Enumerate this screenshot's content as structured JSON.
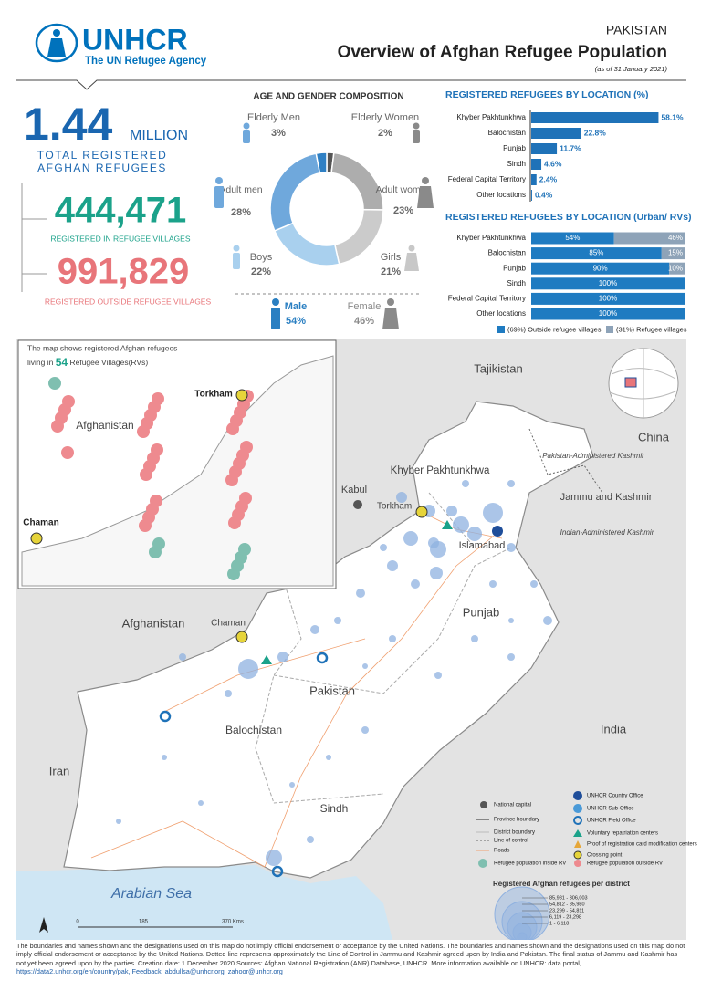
{
  "header": {
    "org": "UNHCR",
    "org_tagline": "The UN Refugee Agency",
    "country": "PAKISTAN",
    "title": "Overview of Afghan Refugee Population",
    "date": "(as of 31 January 2021)"
  },
  "summary": {
    "total": "1.44",
    "total_unit": "MILLION",
    "total_label_1": "TOTAL REGISTERED",
    "total_label_2": "AFGHAN REFUGEES",
    "in_villages": "444,471",
    "in_villages_label": "REGISTERED IN REFUGEE VILLAGES",
    "outside_villages": "991,829",
    "outside_villages_label": "REGISTERED OUTSIDE REFUGEE VILLAGES"
  },
  "composition": {
    "type": "donut",
    "title": "AGE AND GENDER COMPOSITION",
    "segments": [
      {
        "name": "Elderly Women",
        "value": 2,
        "label": "2%",
        "color": "#555555"
      },
      {
        "name": "Adult women",
        "value": 23,
        "label": "23%",
        "color": "#adadad"
      },
      {
        "name": "Girls",
        "value": 21,
        "label": "21%",
        "color": "#cbcbcb"
      },
      {
        "name": "Boys",
        "value": 22,
        "label": "22%",
        "color": "#a9d0ee"
      },
      {
        "name": "Adult men",
        "value": 28,
        "label": "28%",
        "color": "#6fa8dc"
      },
      {
        "name": "Elderly Men",
        "value": 3,
        "label": "3%",
        "color": "#2f80c4"
      }
    ],
    "gender": [
      {
        "name": "Male",
        "label": "54%"
      },
      {
        "name": "Female",
        "label": "46%"
      }
    ]
  },
  "by_location": {
    "type": "bar",
    "title": "REGISTERED REFUGEES BY LOCATION (%)",
    "categories": [
      "Khyber Pakhtunkhwa",
      "Balochistan",
      "Punjab",
      "Sindh",
      "Federal Capital Territory",
      "Other locations"
    ],
    "values": [
      58.1,
      22.8,
      11.7,
      4.6,
      2.4,
      0.4
    ],
    "value_labels": [
      "58.1%",
      "22.8%",
      "11.7%",
      "4.6%",
      "2.4%",
      "0.4%"
    ],
    "color": "#1f72b8"
  },
  "by_settlement": {
    "type": "stacked-bar",
    "title": "REGISTERED REFUGEES BY LOCATION (Urban/ RVs)",
    "categories": [
      "Khyber Pakhtunkhwa",
      "Balochistan",
      "Punjab",
      "Sindh",
      "Federal Capital Territory",
      "Other locations"
    ],
    "series": [
      {
        "name": "(69%) Outside refugee villages",
        "color": "#1f7bc1",
        "values": [
          54,
          85,
          90,
          100,
          100,
          100
        ],
        "value_labels": [
          "54%",
          "85%",
          "90%",
          "100%",
          "100%",
          "100%"
        ]
      },
      {
        "name": "(31%) Refugee villages",
        "color": "#8ea3b8",
        "values": [
          46,
          15,
          10,
          0,
          0,
          0
        ],
        "value_labels": [
          "46%",
          "15%",
          "10%",
          null,
          null,
          null
        ]
      }
    ]
  },
  "map": {
    "tajikistan": "Tajikistan",
    "china": "China",
    "pak_kashmir": "Pakistan-Administered Kashmir",
    "jammu": "Jammu and Kashmir",
    "ind_kashmir": "Indian-Administered Kashmir",
    "kp": "Khyber Pakhtunkhwa",
    "kabul": "Kabul",
    "torkham": "Torkham",
    "islamabad": "Islamabad",
    "punjab": "Punjab",
    "afghanistan": "Afghanistan",
    "chaman": "Chaman",
    "pakistan": "Pakistan",
    "balochistan": "Balochistan",
    "india": "India",
    "iran": "Iran",
    "sindh": "Sindh",
    "sea": "Arabian Sea"
  },
  "inset": {
    "note_1": "The map shows registered Afghan refugees",
    "note_2a": "living in",
    "note_count": "54",
    "note_2b": "Refugee Villages(RVs)",
    "afghanistan": "Afghanistan",
    "torkham": "Torkham",
    "chaman": "Chaman"
  },
  "map_legend": {
    "left": [
      "National capital",
      "Province boundary",
      "District boundary",
      "Line of control",
      "Roads",
      "Refugee population inside RV"
    ],
    "right": [
      "UNHCR Country Office",
      "UNHCR Sub-Office",
      "UNHCR Field Office",
      "Voluntary repatriation centers",
      "Proof of registration card modification centers",
      "Crossing point",
      "Refugee population outside RV"
    ],
    "size_title": "Registered Afghan refugees per district",
    "size_classes": [
      "85,981 - 306,003",
      "54,812 - 85,980",
      "23,299 - 54,811",
      "6,119 - 23,298",
      "1 - 6,118"
    ]
  },
  "scale": {
    "labels": [
      "0",
      "185",
      "370 Kms"
    ]
  },
  "footer": {
    "text": "The boundaries and names shown and the designations used on this map do not imply official endorsement or acceptance by the United Nations. The boundaries and names shown and the designations used on this map do not imply official endorsement or acceptance by the United Nations. Dotted line represents approximately the Line of Control in Jammu and Kashmir agreed upon by India and Pakistan. The final status of Jammu and Kashmir has not yet been agreed upon by the parties. Creation date: 1 December 2020 Sources: Afghan National Registration (ANR) Database, UNHCR. More information available on UNHCR: data portal,",
    "links": "https://data2.unhcr.org/en/country/pak, Feedback: abdullsa@unhcr.org, zahoor@unhcr.org"
  }
}
